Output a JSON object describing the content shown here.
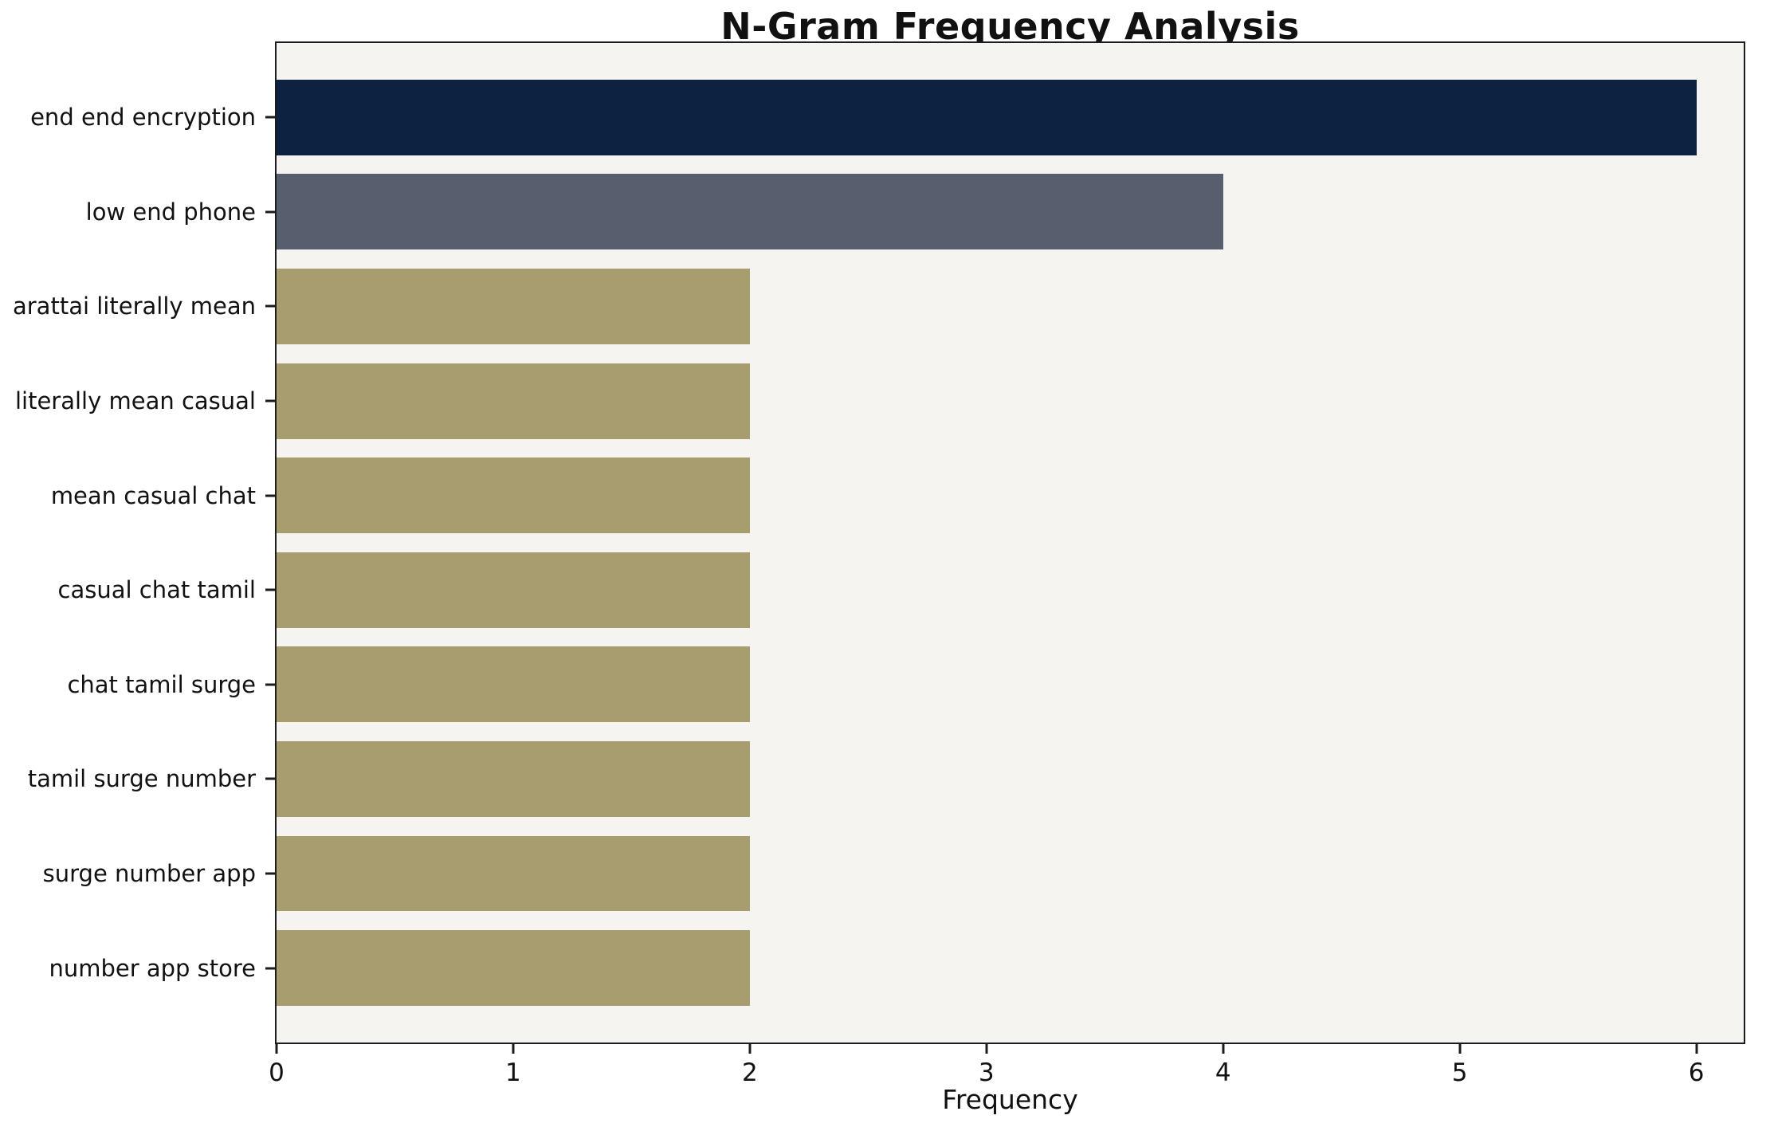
{
  "chart_data": {
    "type": "bar",
    "orientation": "horizontal",
    "title": "N-Gram Frequency Analysis",
    "xlabel": "Frequency",
    "ylabel": "",
    "categories": [
      "end end encryption",
      "low end phone",
      "arattai literally mean",
      "literally mean casual",
      "mean casual chat",
      "casual chat tamil",
      "chat tamil surge",
      "tamil surge number",
      "surge number app",
      "number app store"
    ],
    "values": [
      6,
      4,
      2,
      2,
      2,
      2,
      2,
      2,
      2,
      2
    ],
    "colors": [
      "#0d2240",
      "#575e6e",
      "#a79d6e",
      "#a79d6e",
      "#a79d6e",
      "#a79d6e",
      "#a79d6e",
      "#a79d6e",
      "#a79d6e",
      "#a79d6e"
    ],
    "xticks": [
      0,
      1,
      2,
      3,
      4,
      5,
      6
    ],
    "xlim": [
      0,
      6.2
    ],
    "grid": false,
    "legend": "none",
    "plot_background": "#f5f4f1",
    "spine_color": "#1c1c1c",
    "text_color": "#111111"
  }
}
